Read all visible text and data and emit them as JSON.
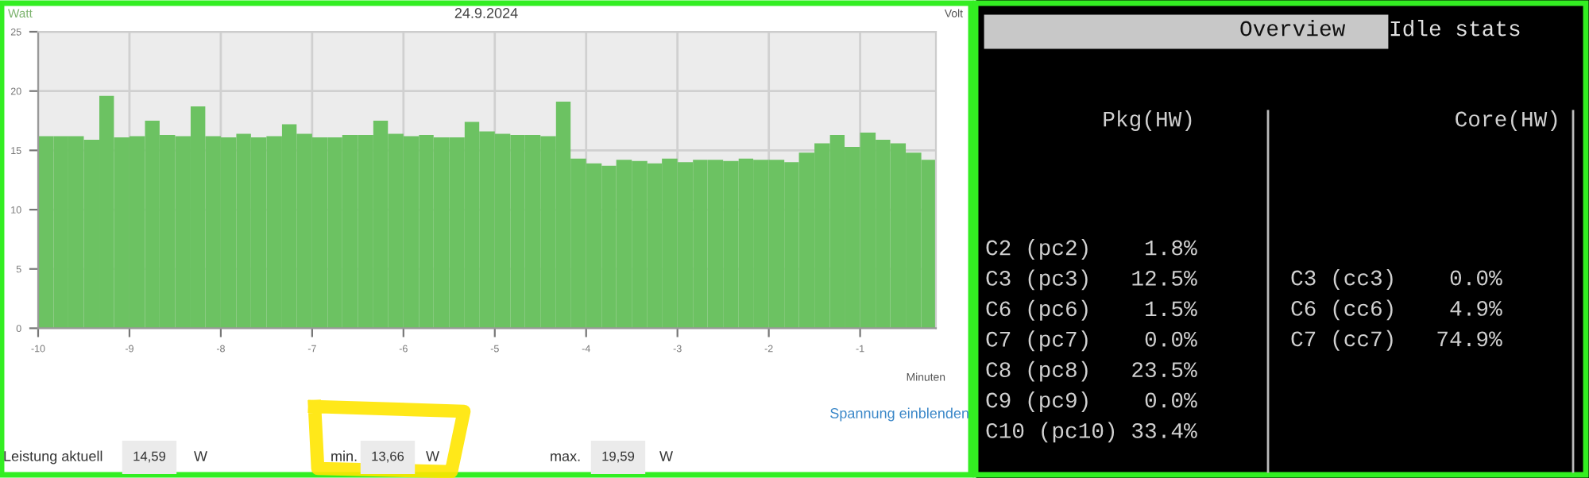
{
  "chart_data": [
    {
      "type": "histogram",
      "title": "24.9.2024",
      "ylabel": "Watt",
      "xlabel": "Minuten",
      "bins": [
        -10,
        -9.83,
        -9.67,
        -9.5,
        -9.33,
        -9.17,
        -9,
        -8.83,
        -8.67,
        -8.5,
        -8.33,
        -8.17,
        -8,
        -7.83,
        -7.67,
        -7.5,
        -7.33,
        -7.17,
        -7,
        -6.83,
        -6.67,
        -6.5,
        -6.33,
        -6.17,
        -6,
        -5.83,
        -5.67,
        -5.5,
        -5.33,
        -5.17,
        -5,
        -4.83,
        -4.67,
        -4.5,
        -4.33,
        -4.17,
        -4,
        -3.83,
        -3.67,
        -3.5,
        -3.33,
        -3.17,
        -3,
        -2.83,
        -2.67,
        -2.5,
        -2.33,
        -2.17,
        -2,
        -1.83,
        -1.67,
        -1.5,
        -1.33,
        -1.17,
        -1,
        -0.83,
        -0.67,
        -0.5,
        -0.33,
        -0.17
      ],
      "values": [
        16.2,
        16.2,
        16.2,
        15.9,
        19.6,
        16.1,
        16.2,
        17.5,
        16.3,
        16.2,
        18.7,
        16.2,
        16.1,
        16.4,
        16.1,
        16.2,
        17.2,
        16.4,
        16.1,
        16.1,
        16.3,
        16.3,
        17.5,
        16.4,
        16.2,
        16.3,
        16.1,
        16.1,
        17.4,
        16.6,
        16.4,
        16.3,
        16.3,
        16.2,
        19.1,
        14.3,
        13.9,
        13.7,
        14.2,
        14.1,
        13.9,
        14.3,
        14.0,
        14.2,
        14.2,
        14.1,
        14.3,
        14.2,
        14.2,
        14.0,
        14.8,
        15.6,
        16.3,
        15.3,
        16.5,
        15.9,
        15.6,
        14.8,
        14.2
      ],
      "color": "#6cc262",
      "xlim": [
        -10,
        -0.17
      ],
      "xticks": [
        -10,
        -9,
        -8,
        -7,
        -6,
        -5,
        -4,
        -3,
        -2,
        -1
      ],
      "ylim": [
        0,
        25
      ],
      "yticks": [
        0,
        5,
        10,
        15,
        20,
        25
      ],
      "grid": true,
      "annotations": [
        "Volt",
        "Spannung einblenden",
        "Leistung aktuell",
        "14,59",
        "W",
        "min.",
        "13,66",
        "W",
        "max.",
        "19,59",
        "W"
      ]
    },
    {
      "type": "other",
      "annotations": [
        "Overview",
        "Idle stats",
        "Pkg(HW)",
        "Core(HW)",
        "C2 (pc2)    1.8%",
        "C3 (pc3)   12.5%",
        "C6 (pc6)    1.5%",
        "C7 (pc7)    0.0%",
        "C8 (pc8)   23.5%",
        "C9 (pc9)    0.0%",
        "C10 (pc10) 33.4%",
        "C3 (cc3)    0.0%",
        "C6 (cc6)    4.9%",
        "C7 (cc7)   74.9%"
      ]
    }
  ]
}
